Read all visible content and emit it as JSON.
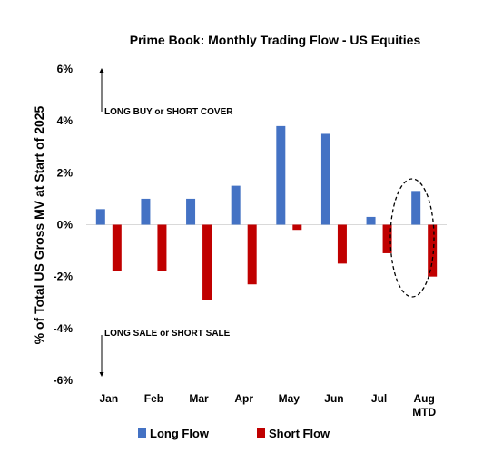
{
  "chart_data": {
    "type": "bar",
    "title": "Prime Book: Monthly Trading Flow - US Equities",
    "ylabel": "% of Total US Gross MV at Start of 2025",
    "xlabel": "",
    "categories": [
      [
        "Jan"
      ],
      [
        "Feb"
      ],
      [
        "Mar"
      ],
      [
        "Apr"
      ],
      [
        "May"
      ],
      [
        "Jun"
      ],
      [
        "Jul"
      ],
      [
        "Aug",
        "MTD"
      ]
    ],
    "series": [
      {
        "name": "Long Flow",
        "color": "#4472C4",
        "values": [
          0.6,
          1.0,
          1.0,
          1.5,
          3.8,
          3.5,
          0.3,
          1.3
        ]
      },
      {
        "name": "Short Flow",
        "color": "#C00000",
        "values": [
          -1.8,
          -1.8,
          -2.9,
          -2.3,
          -0.2,
          -1.5,
          -1.1,
          -2.0
        ]
      }
    ],
    "ylim": [
      -6,
      6
    ],
    "yticks": [
      "6%",
      "4%",
      "2%",
      "0%",
      "-2%",
      "-4%",
      "-6%"
    ],
    "ytick_values": [
      6,
      4,
      2,
      0,
      -2,
      -4,
      -6
    ],
    "annotations": {
      "top": "LONG BUY or SHORT COVER",
      "bottom": "LONG SALE or SHORT SALE"
    },
    "highlight_category": "Aug MTD",
    "grid": false,
    "legend_position": "bottom"
  }
}
